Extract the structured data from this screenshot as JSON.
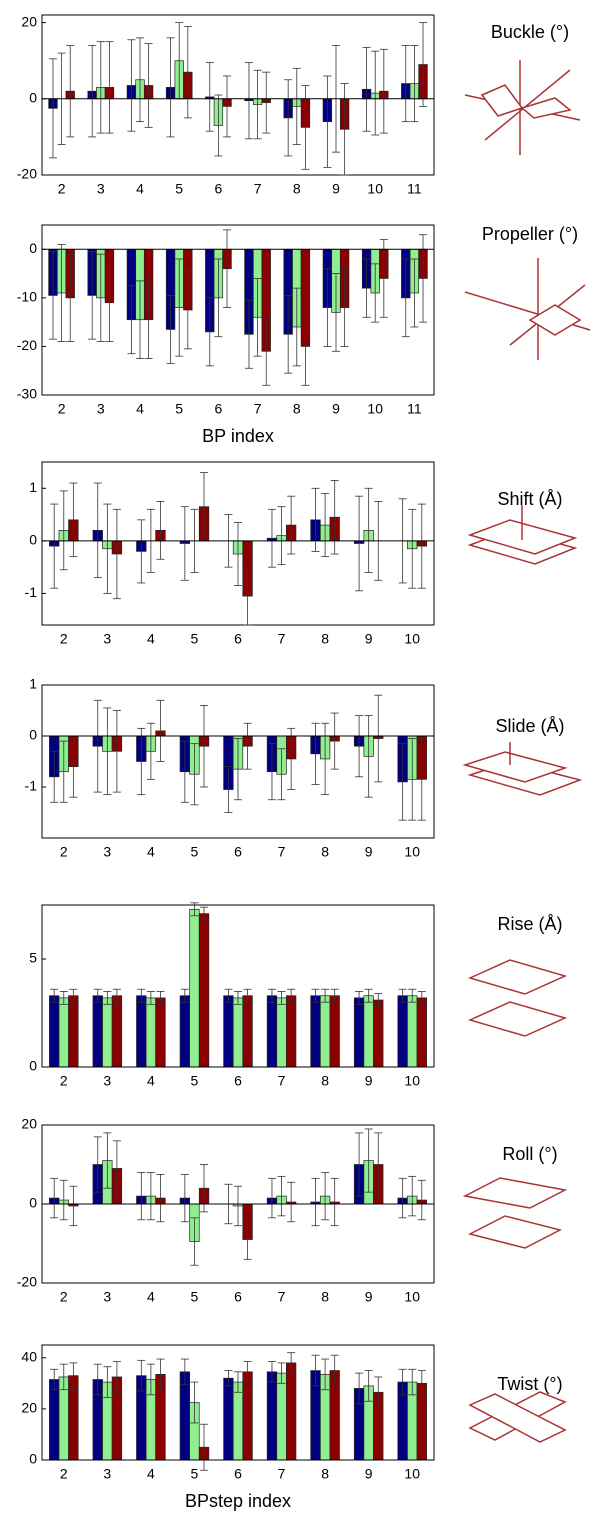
{
  "chart_data": [
    {
      "type": "bar",
      "title": "Buckle (°)",
      "categories": [
        "2",
        "3",
        "4",
        "5",
        "6",
        "7",
        "8",
        "9",
        "10",
        "11"
      ],
      "ylim": [
        -20,
        22
      ],
      "yticks": [
        -20,
        0,
        20
      ],
      "series": [
        {
          "color": "#000080",
          "values": [
            -2.5,
            2,
            3.5,
            3,
            0.5,
            -0.5,
            -5,
            -6,
            2.5,
            4
          ],
          "errors": [
            13,
            12,
            12,
            13,
            9,
            10,
            10,
            12,
            11,
            10
          ]
        },
        {
          "color": "#90ee90",
          "values": [
            0,
            3,
            5,
            10,
            -7,
            -1.5,
            -2,
            0,
            1.5,
            4
          ],
          "errors": [
            12,
            12,
            11,
            10,
            8,
            9,
            10,
            14,
            11,
            10
          ]
        },
        {
          "color": "#8b0000",
          "values": [
            2,
            3,
            3.5,
            7,
            -2,
            -1,
            -7.5,
            -8,
            2,
            9
          ],
          "errors": [
            12,
            12,
            11,
            12,
            8,
            8,
            11,
            12,
            11,
            11
          ]
        }
      ]
    },
    {
      "type": "bar",
      "title": "Propeller (°)",
      "xlabel": "BP index",
      "categories": [
        "2",
        "3",
        "4",
        "5",
        "6",
        "7",
        "8",
        "9",
        "10",
        "11"
      ],
      "ylim": [
        -30,
        5
      ],
      "yticks": [
        -30,
        -20,
        -10,
        0
      ],
      "series": [
        {
          "color": "#000080",
          "values": [
            -9.5,
            -9.5,
            -14.5,
            -16.5,
            -17,
            -17.5,
            -17.5,
            -12,
            -8,
            -10
          ],
          "errors": [
            9,
            9,
            7,
            7,
            7,
            7,
            8,
            8,
            6,
            8
          ]
        },
        {
          "color": "#90ee90",
          "values": [
            -9,
            -10,
            -14.5,
            -12,
            -10,
            -14,
            -16,
            -13,
            -9,
            -9
          ],
          "errors": [
            10,
            9,
            8,
            10,
            8,
            8,
            8,
            8,
            6,
            7
          ]
        },
        {
          "color": "#8b0000",
          "values": [
            -10,
            -11,
            -14.5,
            -12.5,
            -4,
            -21,
            -20,
            -12,
            -6,
            -6
          ],
          "errors": [
            9,
            8,
            8,
            8,
            8,
            7,
            8,
            8,
            8,
            9
          ]
        }
      ]
    },
    {
      "type": "bar",
      "title": "Shift (Å)",
      "categories": [
        "2",
        "3",
        "4",
        "5",
        "6",
        "7",
        "8",
        "9",
        "10"
      ],
      "ylim": [
        -1.6,
        1.5
      ],
      "yticks": [
        -1,
        0,
        1
      ],
      "series": [
        {
          "color": "#000080",
          "values": [
            -0.1,
            0.2,
            -0.2,
            -0.05,
            0,
            0.05,
            0.4,
            -0.05,
            0
          ],
          "errors": [
            0.8,
            0.9,
            0.6,
            0.7,
            0.5,
            0.55,
            0.6,
            0.9,
            0.8
          ]
        },
        {
          "color": "#90ee90",
          "values": [
            0.2,
            -0.15,
            0,
            0,
            -0.25,
            0.1,
            0.3,
            0.2,
            -0.15
          ],
          "errors": [
            0.75,
            0.85,
            0.6,
            0.6,
            0.6,
            0.55,
            0.6,
            0.8,
            0.75
          ]
        },
        {
          "color": "#8b0000",
          "values": [
            0.4,
            -0.25,
            0.2,
            0.65,
            -1.05,
            0.3,
            0.45,
            0,
            -0.1
          ],
          "errors": [
            0.7,
            0.85,
            0.55,
            0.65,
            0.55,
            0.55,
            0.7,
            0.75,
            0.8
          ]
        }
      ]
    },
    {
      "type": "bar",
      "title": "Slide (Å)",
      "categories": [
        "2",
        "3",
        "4",
        "5",
        "6",
        "7",
        "8",
        "9",
        "10"
      ],
      "ylim": [
        -2,
        1
      ],
      "yticks": [
        -1,
        0,
        1
      ],
      "series": [
        {
          "color": "#000080",
          "values": [
            -0.8,
            -0.2,
            -0.5,
            -0.7,
            -1.05,
            -0.7,
            -0.35,
            -0.2,
            -0.9
          ],
          "errors": [
            0.5,
            0.9,
            0.65,
            0.6,
            0.45,
            0.55,
            0.6,
            0.6,
            0.75
          ]
        },
        {
          "color": "#90ee90",
          "values": [
            -0.7,
            -0.3,
            -0.3,
            -0.75,
            -0.65,
            -0.75,
            -0.45,
            -0.4,
            -0.85
          ],
          "errors": [
            0.6,
            0.85,
            0.55,
            0.6,
            0.6,
            0.5,
            0.7,
            0.8,
            0.8
          ]
        },
        {
          "color": "#8b0000",
          "values": [
            -0.6,
            -0.3,
            0.1,
            -0.2,
            -0.2,
            -0.45,
            -0.1,
            -0.05,
            -0.85
          ],
          "errors": [
            0.6,
            0.8,
            0.6,
            0.8,
            0.45,
            0.6,
            0.55,
            0.85,
            0.8
          ]
        }
      ]
    },
    {
      "type": "bar",
      "title": "Rise (Å)",
      "categories": [
        "2",
        "3",
        "4",
        "5",
        "6",
        "7",
        "8",
        "9",
        "10"
      ],
      "ylim": [
        0,
        7.5
      ],
      "yticks": [
        0,
        5
      ],
      "series": [
        {
          "color": "#000080",
          "values": [
            3.3,
            3.3,
            3.3,
            3.3,
            3.3,
            3.3,
            3.3,
            3.2,
            3.3
          ],
          "errors": [
            0.3,
            0.3,
            0.3,
            0.3,
            0.3,
            0.3,
            0.3,
            0.3,
            0.3
          ]
        },
        {
          "color": "#90ee90",
          "values": [
            3.2,
            3.2,
            3.2,
            7.3,
            3.2,
            3.2,
            3.3,
            3.3,
            3.3
          ],
          "errors": [
            0.3,
            0.3,
            0.3,
            0.3,
            0.3,
            0.3,
            0.3,
            0.3,
            0.3
          ]
        },
        {
          "color": "#8b0000",
          "values": [
            3.3,
            3.3,
            3.2,
            7.1,
            3.3,
            3.3,
            3.3,
            3.1,
            3.2
          ],
          "errors": [
            0.3,
            0.3,
            0.3,
            0.3,
            0.3,
            0.3,
            0.3,
            0.3,
            0.3
          ]
        }
      ]
    },
    {
      "type": "bar",
      "title": "Roll (°)",
      "categories": [
        "2",
        "3",
        "4",
        "5",
        "6",
        "7",
        "8",
        "9",
        "10"
      ],
      "ylim": [
        -20,
        20
      ],
      "yticks": [
        -20,
        0,
        20
      ],
      "series": [
        {
          "color": "#000080",
          "values": [
            1.5,
            10,
            2,
            1.5,
            0,
            1.5,
            0.5,
            10,
            1.5
          ],
          "errors": [
            5,
            7,
            6,
            6,
            5,
            5,
            6,
            8,
            5
          ]
        },
        {
          "color": "#90ee90",
          "values": [
            1,
            11,
            2,
            -9.5,
            -0.5,
            2,
            2,
            11,
            2
          ],
          "errors": [
            5,
            7,
            6,
            6,
            5,
            5,
            6,
            8,
            5
          ]
        },
        {
          "color": "#8b0000",
          "values": [
            -0.5,
            9,
            1.5,
            4,
            -9,
            0.5,
            0.5,
            10,
            1
          ],
          "errors": [
            5,
            7,
            6,
            6,
            5,
            5,
            6,
            8,
            5
          ]
        }
      ]
    },
    {
      "type": "bar",
      "title": "Twist (°)",
      "xlabel": "BPstep index",
      "categories": [
        "2",
        "3",
        "4",
        "5",
        "6",
        "7",
        "8",
        "9",
        "10"
      ],
      "ylim": [
        0,
        45
      ],
      "yticks": [
        0,
        20,
        40
      ],
      "series": [
        {
          "color": "#000080",
          "values": [
            31.5,
            31.5,
            33,
            34.5,
            32,
            34.5,
            35,
            28,
            30.5
          ],
          "errors": [
            4,
            6,
            6,
            5,
            3,
            4,
            6,
            6,
            5
          ]
        },
        {
          "color": "#90ee90",
          "values": [
            32.5,
            30.5,
            31.5,
            22.5,
            30.5,
            34,
            33.5,
            29,
            30.5
          ],
          "errors": [
            5,
            6,
            6,
            8,
            4,
            4,
            6,
            6,
            5
          ]
        },
        {
          "color": "#8b0000",
          "values": [
            33,
            32.5,
            33.5,
            5,
            34.5,
            38,
            35,
            26.5,
            30
          ],
          "errors": [
            5,
            6,
            6,
            9,
            4,
            4,
            6,
            6,
            5
          ]
        }
      ]
    }
  ]
}
